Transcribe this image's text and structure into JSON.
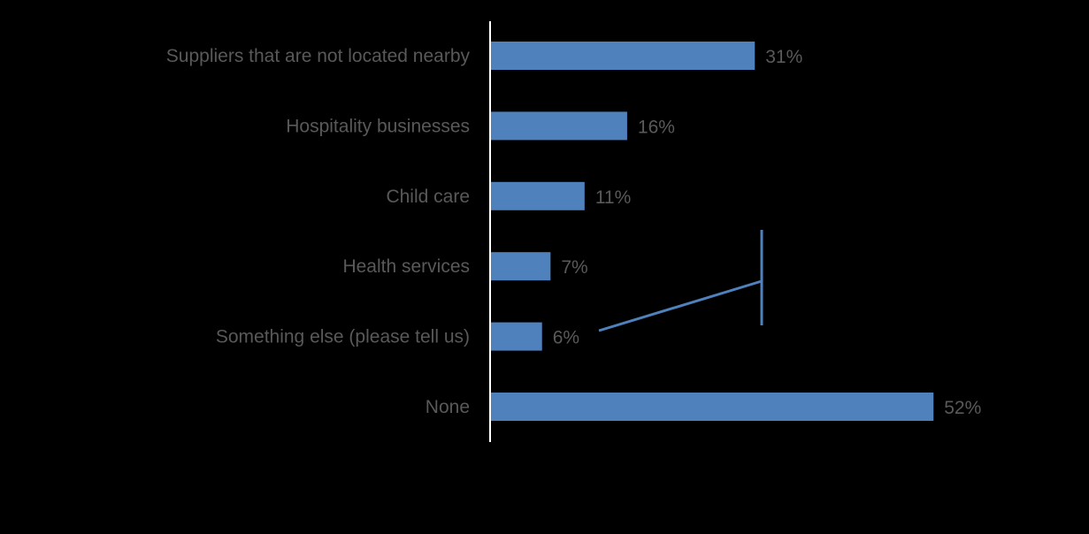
{
  "chart_data": {
    "type": "bar",
    "orientation": "horizontal",
    "categories": [
      "Suppliers that are not located nearby",
      "Hospitality businesses",
      "Child care",
      "Health services",
      "Something else (please tell us)",
      "None"
    ],
    "values": [
      31,
      16,
      11,
      7,
      6,
      52
    ],
    "data_labels": [
      "31%",
      "16%",
      "11%",
      "7%",
      "6%",
      "52%"
    ],
    "unit": "%",
    "xlim": [
      0,
      60
    ],
    "grid": false,
    "legend": "none",
    "colors": {
      "bar": "#4F81BD",
      "axis": "#FFFFFF",
      "text": "#595959",
      "background": "#000000"
    }
  }
}
